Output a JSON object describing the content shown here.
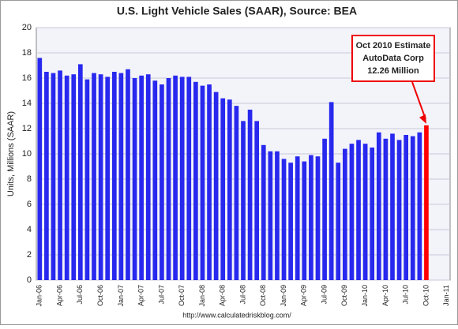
{
  "chart_data": {
    "type": "bar",
    "title": "U.S. Light Vehicle Sales (SAAR), Source: BEA",
    "y_label": "Units, Millions (SAAR)",
    "source": "http://www.calculatedriskblog.com/",
    "annotation": [
      "Oct 2010 Estimate",
      "AutoData  Corp",
      "12.26 Million"
    ],
    "categories": [
      "Jan-06",
      null,
      null,
      "Apr-06",
      null,
      null,
      "Jul-06",
      null,
      null,
      "Oct-06",
      null,
      null,
      "Jan-07",
      null,
      null,
      "Apr-07",
      null,
      null,
      "Jul-07",
      null,
      null,
      "Oct-07",
      null,
      null,
      "Jan-08",
      null,
      null,
      "Apr-08",
      null,
      null,
      "Jul-08",
      null,
      null,
      "Oct-08",
      null,
      null,
      "Jan-09",
      null,
      null,
      "Apr-09",
      null,
      null,
      "Jul-09",
      null,
      null,
      "Oct-09",
      null,
      null,
      "Jan-10",
      null,
      null,
      "Apr-10",
      null,
      null,
      "Jul-10",
      null,
      null,
      "Oct-10",
      null,
      null,
      "Jan-11"
    ],
    "values": [
      17.6,
      16.5,
      16.4,
      16.6,
      16.2,
      16.3,
      17.1,
      15.9,
      16.4,
      16.3,
      16.1,
      16.5,
      16.4,
      16.7,
      16.0,
      16.2,
      16.3,
      15.8,
      15.5,
      16.0,
      16.2,
      16.1,
      16.1,
      15.7,
      15.4,
      15.5,
      14.9,
      14.4,
      14.3,
      13.8,
      12.6,
      13.5,
      12.6,
      10.7,
      10.2,
      10.2,
      9.6,
      9.3,
      9.8,
      9.4,
      9.9,
      9.8,
      11.2,
      14.1,
      9.3,
      10.4,
      10.8,
      11.1,
      10.8,
      10.5,
      11.7,
      11.2,
      11.6,
      11.1,
      11.5,
      11.4,
      11.7,
      12.26,
      null,
      null,
      null
    ],
    "color": "#2828ee",
    "highlight": {
      "index": 57,
      "color": "#ff0000"
    },
    "ylim": [
      0,
      20
    ],
    "yticks": [
      0,
      2,
      4,
      6,
      8,
      10,
      12,
      14,
      16,
      18,
      20
    ],
    "grid": true
  }
}
